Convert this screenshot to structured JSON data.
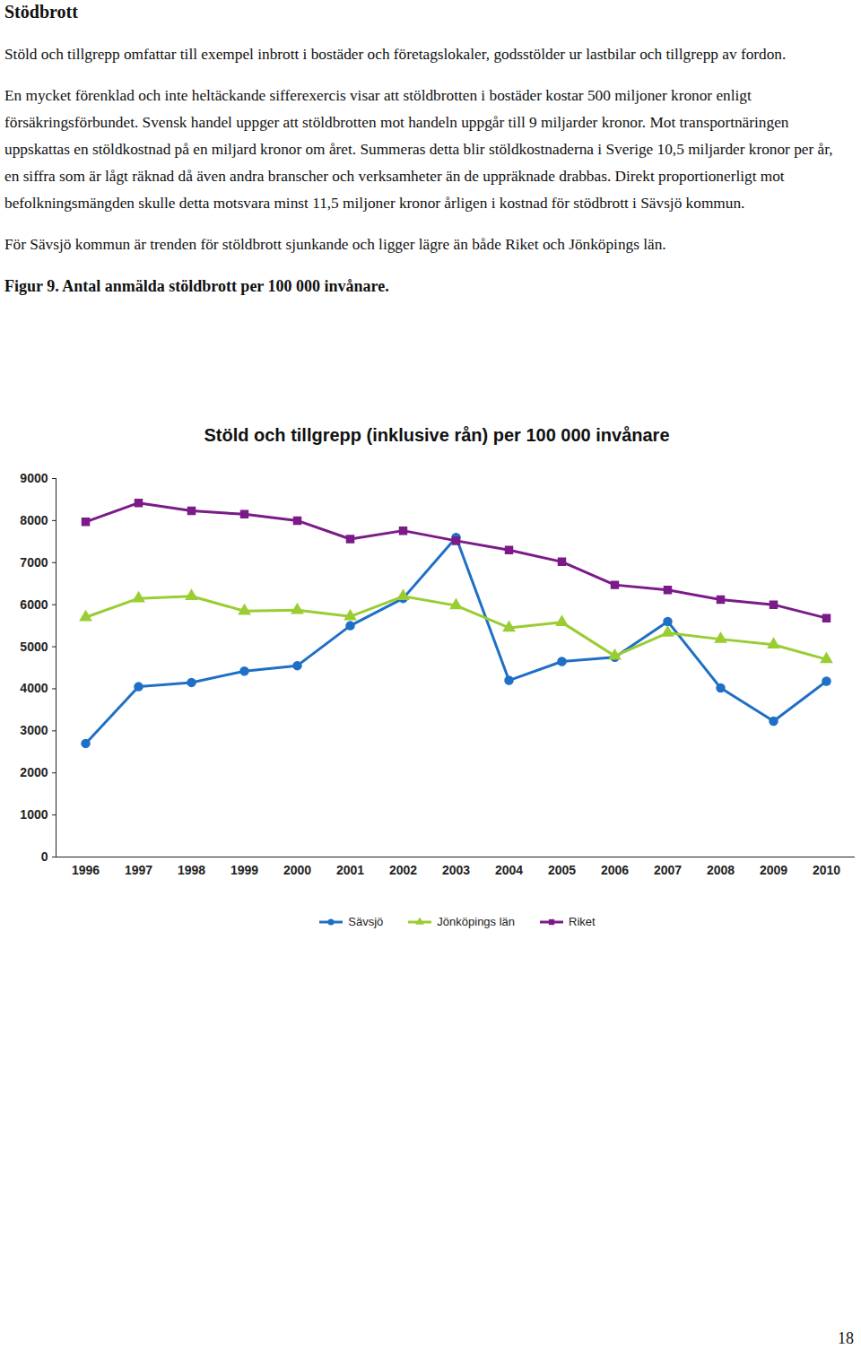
{
  "heading": "Stödbrott",
  "paragraphs": [
    "Stöld och tillgrepp omfattar till exempel inbrott i bostäder och företagslokaler, godsstölder ur lastbilar och tillgrepp av fordon.",
    "En mycket förenklad och inte heltäckande sifferexercis visar att stöldbrotten i bostäder kostar 500 miljoner kronor enligt försäkringsförbundet. Svensk handel uppger att stöldbrotten mot handeln uppgår till 9 miljarder kronor. Mot transportnäringen uppskattas en stöldkostnad på en miljard kronor om året. Summeras detta blir stöldkostnaderna i Sverige 10,5 miljarder kronor per år, en siffra som är lågt räknad då även andra branscher och verksamheter än de uppräknade drabbas. Direkt proportionerligt mot befolkningsmängden skulle detta motsvara minst 11,5 miljoner kronor årligen i kostnad för stödbrott i Sävsjö kommun.",
    "För Sävsjö kommun är trenden för stöldbrott sjunkande och ligger lägre än både Riket och Jönköpings län."
  ],
  "figure_caption": "Figur 9. Antal anmälda stöldbrott per 100 000 invånare.",
  "chart_data": {
    "type": "line",
    "title": "Stöld och tillgrepp (inklusive rån) per 100 000 invånare",
    "categories": [
      "1996",
      "1997",
      "1998",
      "1999",
      "2000",
      "2001",
      "2002",
      "2003",
      "2004",
      "2005",
      "2006",
      "2007",
      "2008",
      "2009",
      "2010"
    ],
    "series": [
      {
        "name": "Sävsjö",
        "color": "#1f6fc6",
        "marker": "circle",
        "values": [
          2700,
          4050,
          4150,
          4420,
          4550,
          5500,
          6150,
          7600,
          4200,
          4650,
          4750,
          5600,
          4020,
          3230,
          4180
        ]
      },
      {
        "name": "Jönköpings län",
        "color": "#9acd32",
        "marker": "triangle",
        "values": [
          5700,
          6150,
          6200,
          5850,
          5870,
          5720,
          6200,
          5980,
          5450,
          5580,
          4780,
          5330,
          5180,
          5050,
          4700
        ]
      },
      {
        "name": "Riket",
        "color": "#7b1a88",
        "marker": "square",
        "values": [
          7970,
          8420,
          8230,
          8150,
          8000,
          7560,
          7760,
          7520,
          7300,
          7020,
          6470,
          6350,
          6120,
          6000,
          5680
        ]
      }
    ],
    "ylim": [
      0,
      9000
    ],
    "yticks": [
      0,
      1000,
      2000,
      3000,
      4000,
      5000,
      6000,
      7000,
      8000,
      9000
    ],
    "grid": false,
    "legend": "bottom"
  },
  "page_number": 18
}
